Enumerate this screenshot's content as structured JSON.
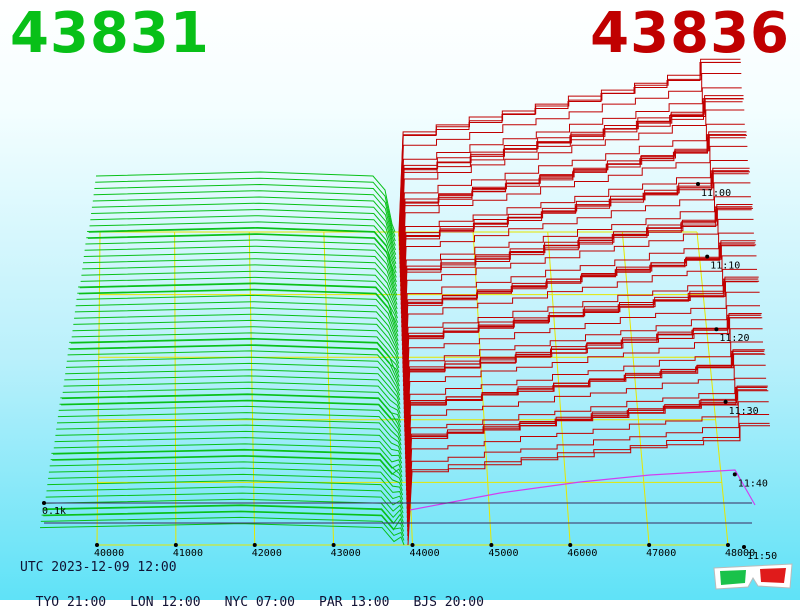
{
  "header": {
    "bid_price": "43831",
    "ask_price": "43836",
    "bid_color": "#08c018",
    "ask_color": "#c00000"
  },
  "footer": {
    "utc": "UTC 2023-12-09 12:00",
    "zones": [
      "TYO 21:00",
      "LON 12:00",
      "NYC 07:00",
      "PAR 13:00",
      "BJS 20:00"
    ]
  },
  "icons": {
    "glasses": "3d-glasses-icon"
  },
  "chart_data": {
    "type": "area",
    "x_ticks": [
      "40000",
      "41000",
      "42000",
      "43000",
      "44000",
      "45000",
      "46000",
      "47000",
      "48000"
    ],
    "time_ticks": [
      "11:00",
      "11:10",
      "11:20",
      "11:30",
      "11:40",
      "11:50"
    ],
    "y_tick": "0.1k",
    "bid_color": "#08c018",
    "ask_color": "#c00000",
    "grid_color": "#e6e600",
    "grid": true,
    "series": [
      {
        "side": "bid",
        "values": [],
        "time_range": [
          "11:00",
          "11:50"
        ]
      },
      {
        "side": "ask",
        "values": [],
        "time_range": [
          "11:00",
          "11:50"
        ]
      }
    ]
  }
}
